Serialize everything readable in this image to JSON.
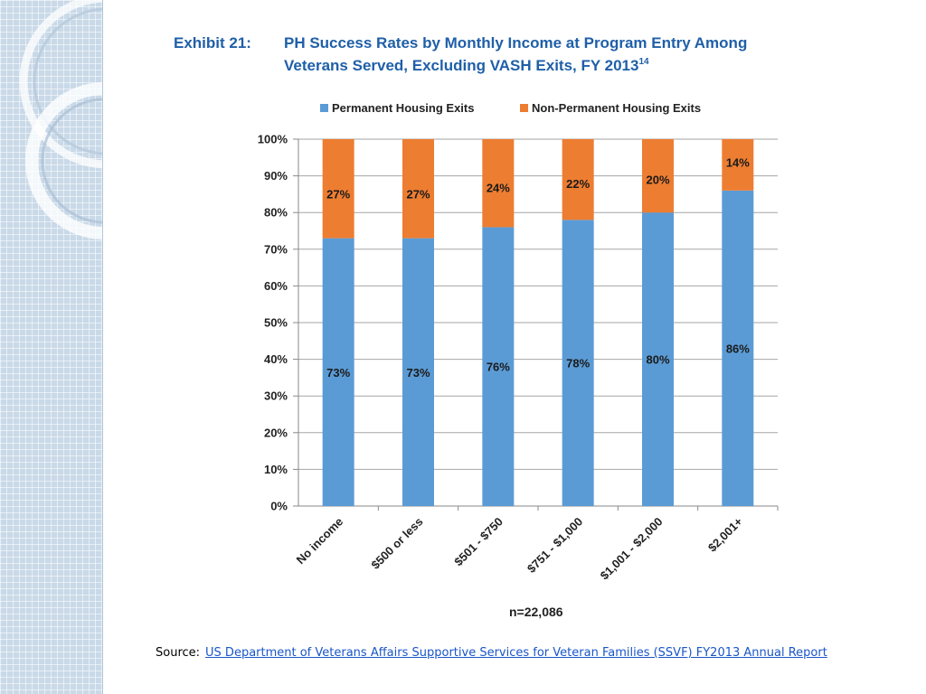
{
  "exhibit": {
    "label": "Exhibit 21:",
    "title_line1": "PH Success Rates by Monthly Income at Program Entry Among",
    "title_line2": "Veterans Served, Excluding VASH Exits, FY 2013",
    "title_sup": "14"
  },
  "colors": {
    "permanent": "#5b9bd5",
    "non_permanent": "#ed7d31",
    "title": "#1f5fa8",
    "link": "#1a56c8"
  },
  "chart_data": {
    "type": "bar",
    "stacked": true,
    "categories": [
      "No income",
      "$500 or less",
      "$501 - $750",
      "$751 - $1,000",
      "$1,001 - $2,000",
      "$2,001+"
    ],
    "series": [
      {
        "name": "Permanent Housing Exits",
        "values": [
          73,
          73,
          76,
          78,
          80,
          86
        ],
        "labels": [
          "73%",
          "73%",
          "76%",
          "78%",
          "80%",
          "86%"
        ]
      },
      {
        "name": "Non-Permanent Housing Exits",
        "values": [
          27,
          27,
          24,
          22,
          20,
          14
        ],
        "labels": [
          "27%",
          "27%",
          "24%",
          "22%",
          "20%",
          "14%"
        ]
      }
    ],
    "ylim": [
      0,
      100
    ],
    "yticks": [
      "0%",
      "10%",
      "20%",
      "30%",
      "40%",
      "50%",
      "60%",
      "70%",
      "80%",
      "90%",
      "100%"
    ],
    "grid": true,
    "legend": "top",
    "note": "n=22,086"
  },
  "source": {
    "label": "Source:",
    "link_text": "US Department of Veterans Affairs Supportive Services for Veteran Families (SSVF) FY2013 Annual Report"
  }
}
